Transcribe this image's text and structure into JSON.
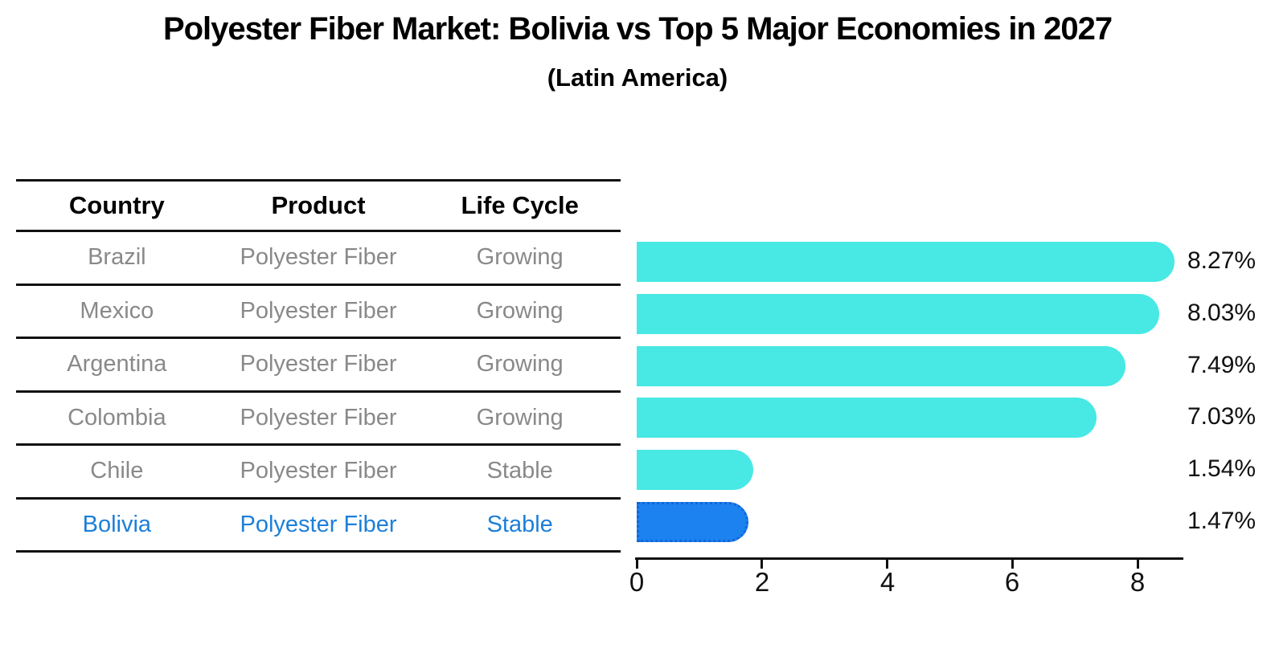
{
  "title": "Polyester Fiber Market: Bolivia vs Top 5 Major Economies in 2027",
  "subtitle": "(Latin America)",
  "table": {
    "headers": [
      "Country",
      "Product",
      "Life Cycle"
    ],
    "rows": [
      {
        "country": "Brazil",
        "product": "Polyester Fiber",
        "life_cycle": "Growing",
        "highlighted": false
      },
      {
        "country": "Mexico",
        "product": "Polyester Fiber",
        "life_cycle": "Growing",
        "highlighted": false
      },
      {
        "country": "Argentina",
        "product": "Polyester Fiber",
        "life_cycle": "Growing",
        "highlighted": false
      },
      {
        "country": "Colombia",
        "product": "Polyester Fiber",
        "life_cycle": "Growing",
        "highlighted": false
      },
      {
        "country": "Chile",
        "product": "Polyester Fiber",
        "life_cycle": "Stable",
        "highlighted": false
      },
      {
        "country": "Bolivia",
        "product": "Polyester Fiber",
        "life_cycle": "Stable",
        "highlighted": true
      }
    ]
  },
  "chart_data": {
    "type": "bar",
    "orientation": "horizontal",
    "title": "Polyester Fiber Market: Bolivia vs Top 5 Major Economies in 2027",
    "subtitle": "(Latin America)",
    "categories": [
      "Brazil",
      "Mexico",
      "Argentina",
      "Colombia",
      "Chile",
      "Bolivia"
    ],
    "values": [
      8.27,
      8.03,
      7.49,
      7.03,
      1.54,
      1.47
    ],
    "value_labels": [
      "8.27%",
      "8.03%",
      "7.49%",
      "7.03%",
      "1.54%",
      "1.47%"
    ],
    "highlight_index": 5,
    "xticks": [
      "0",
      "2",
      "4",
      "6",
      "8"
    ],
    "xtick_values": [
      0,
      2,
      4,
      6,
      8
    ],
    "xlim": [
      0,
      8.75
    ],
    "grid": false,
    "legend": null
  },
  "colors": {
    "bar": "#48E8E4",
    "highlight_bar": "#1B82F0",
    "highlight_bar_border": "#1565D8",
    "highlight_text": "#1C7FD9",
    "table_text": "#898989",
    "rule": "#111111",
    "label_text": "#111111"
  }
}
